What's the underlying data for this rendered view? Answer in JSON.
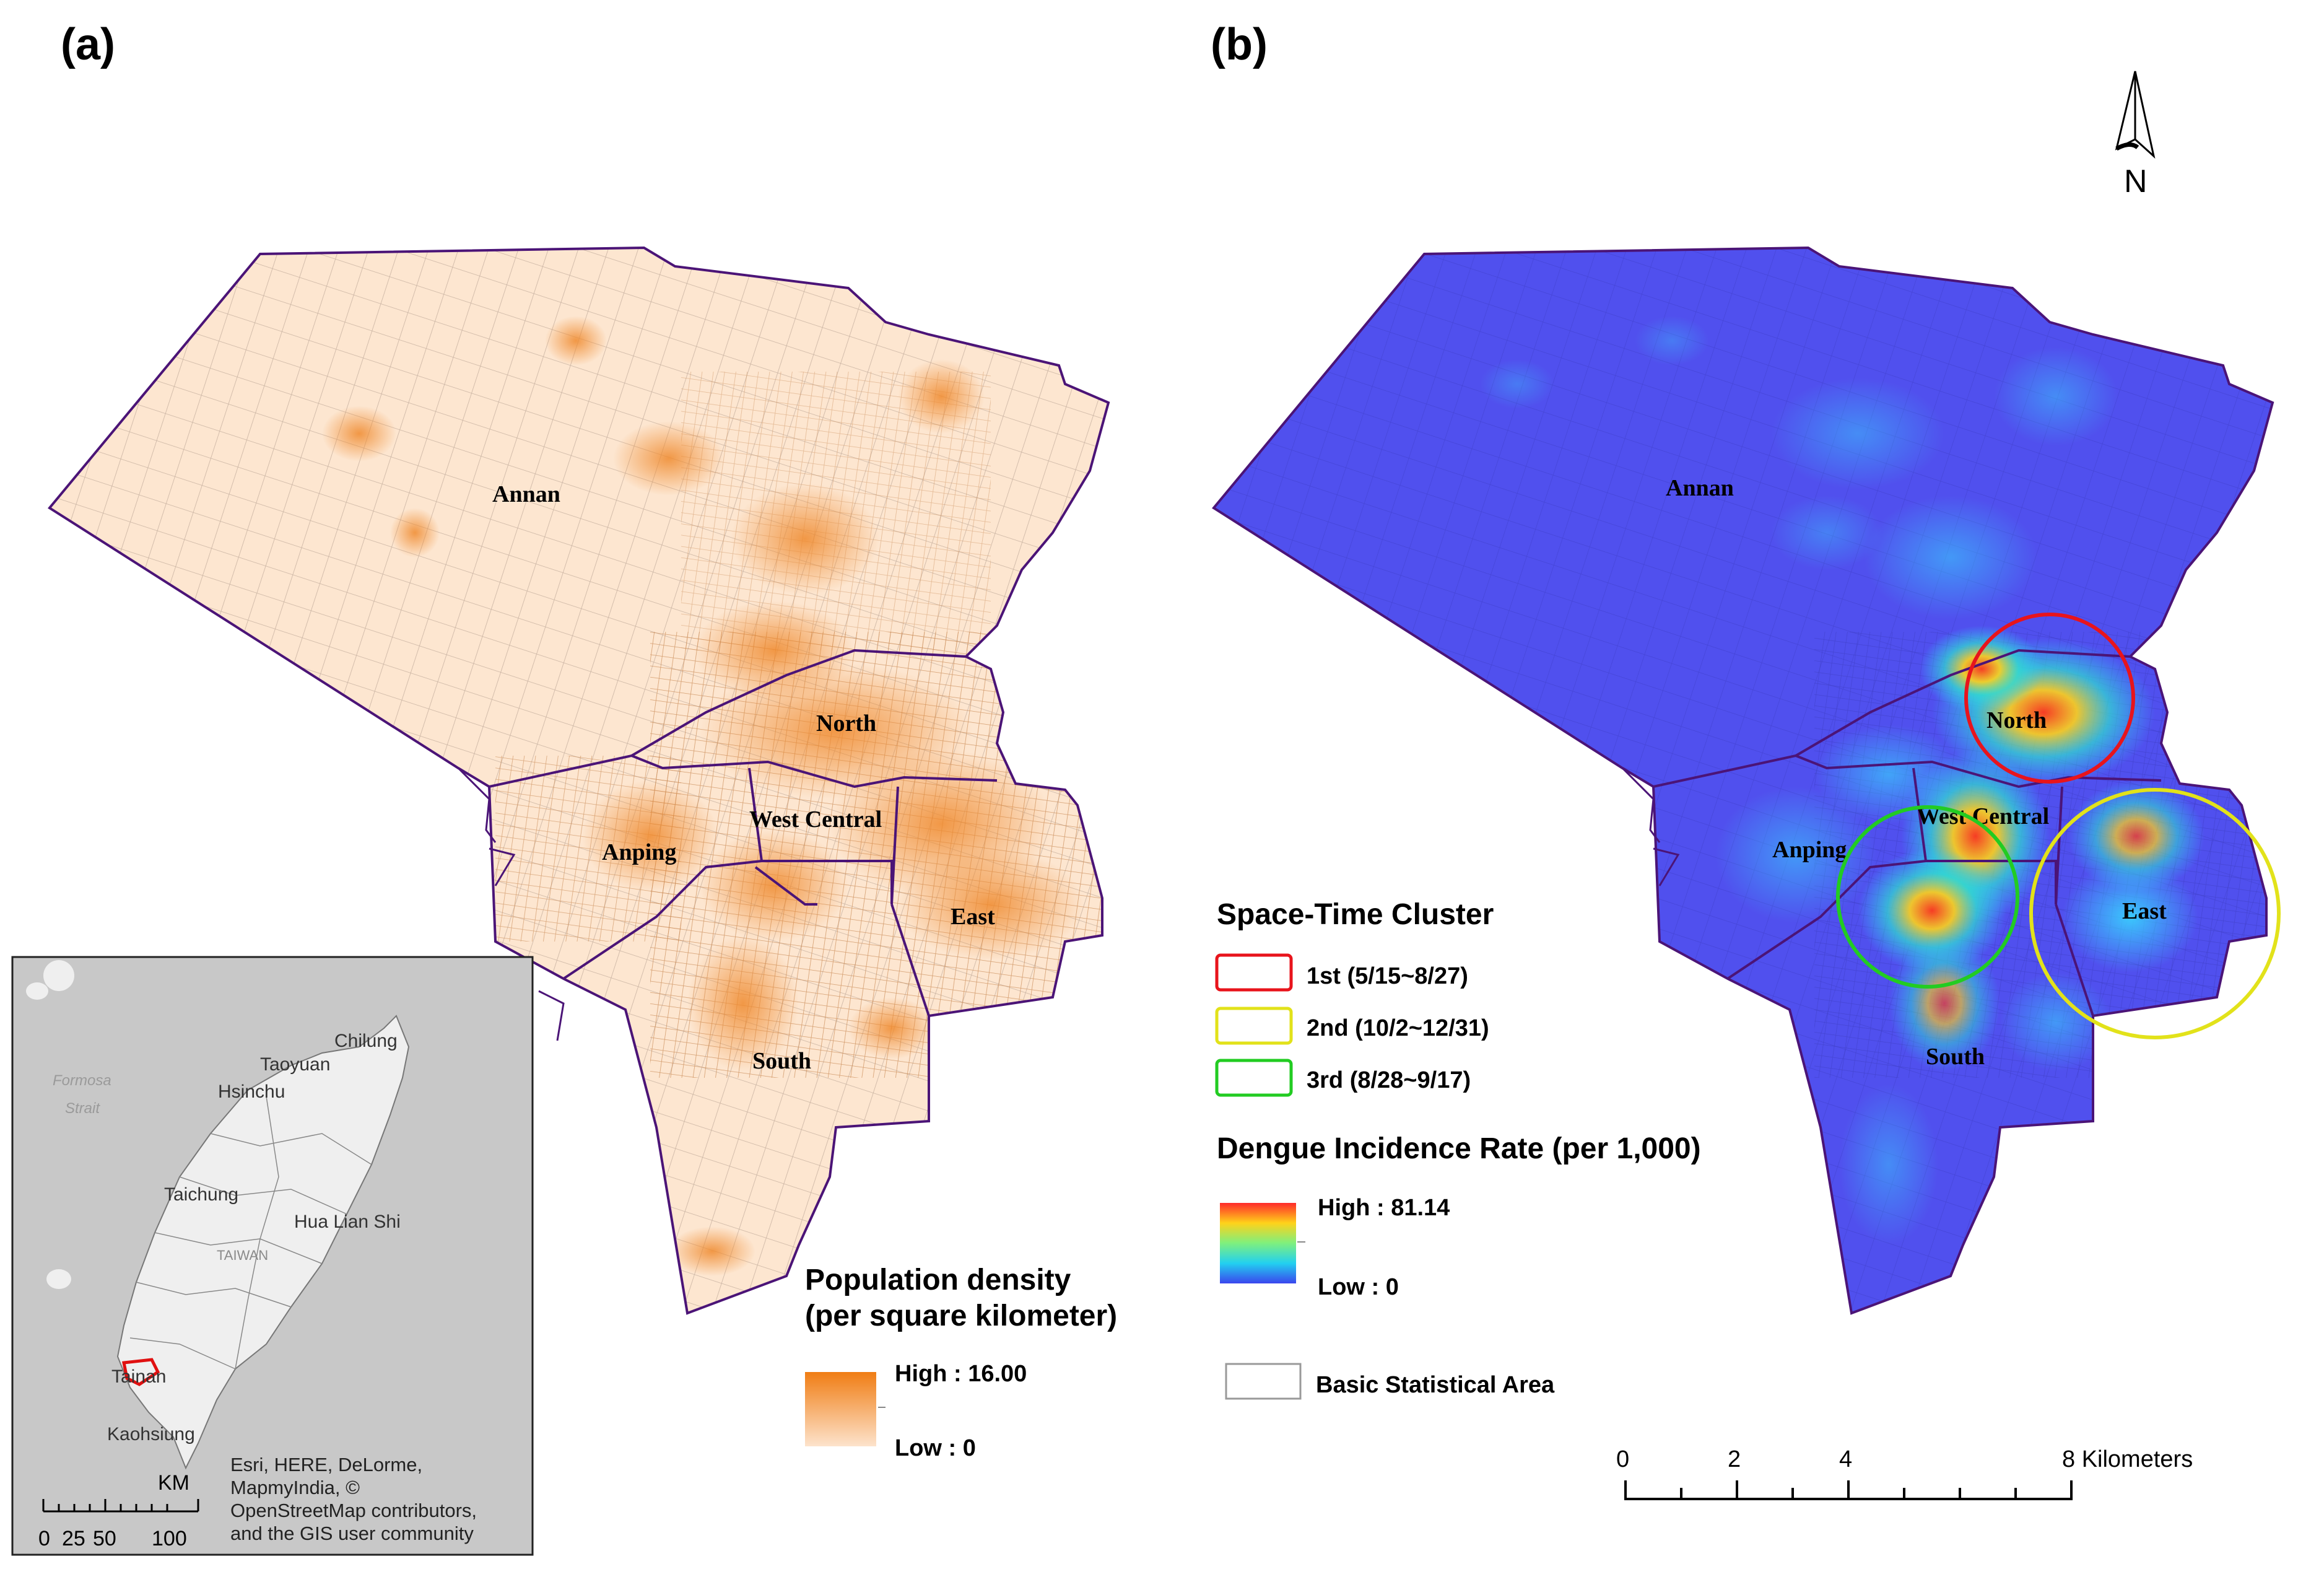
{
  "panels": {
    "a": {
      "label": "(a)"
    },
    "b": {
      "label": "(b)"
    }
  },
  "districts": {
    "annan": "Annan",
    "north": "North",
    "west_central": "West Central",
    "anping": "Anping",
    "east": "East",
    "south": "South"
  },
  "legend_a": {
    "title_line1": "Population density",
    "title_line2": "(per square kilometer)",
    "high": "High : 16.00",
    "low": "Low : 0",
    "color_high": "#f28a1e",
    "color_low": "#fde3cc"
  },
  "legend_b": {
    "cluster_title": "Space-Time Cluster",
    "clusters": [
      {
        "label": "1st (5/15~8/27)",
        "color": "#e8141c"
      },
      {
        "label": "2nd (10/2~12/31)",
        "color": "#e2e21a"
      },
      {
        "label": "3rd (8/28~9/17)",
        "color": "#22cc22"
      }
    ],
    "incidence_title": "Dengue Incidence Rate (per 1,000)",
    "high": "High : 81.14",
    "low": "Low : 0",
    "basic_area": "Basic Statistical Area"
  },
  "north_arrow": {
    "label": "N"
  },
  "scale_bar": {
    "ticks": [
      "0",
      "2",
      "4"
    ],
    "end_label": "8 Kilometers"
  },
  "inset": {
    "sea_label_1": "Formosa",
    "sea_label_2": "Strait",
    "cities": [
      "Chilung",
      "Taoyuan",
      "Hsinchu",
      "Taichung",
      "Hua Lian Shi",
      "Tainan",
      "Kaohsiung"
    ],
    "island_label": "TAIWAN",
    "scale_unit": "KM",
    "scale_ticks": [
      "0",
      "25",
      "50",
      "100"
    ],
    "credit_lines": [
      "Esri, HERE, DeLorme,",
      "MapmyIndia, ©",
      "OpenStreetMap contributors,",
      "and the GIS user community"
    ]
  },
  "colors": {
    "boundary": "#4b1477",
    "map_a_fill": "#fde6d0",
    "map_b_fill": "#5050ee",
    "inset_bg": "#c8c8c8",
    "inset_land": "#efefef"
  }
}
